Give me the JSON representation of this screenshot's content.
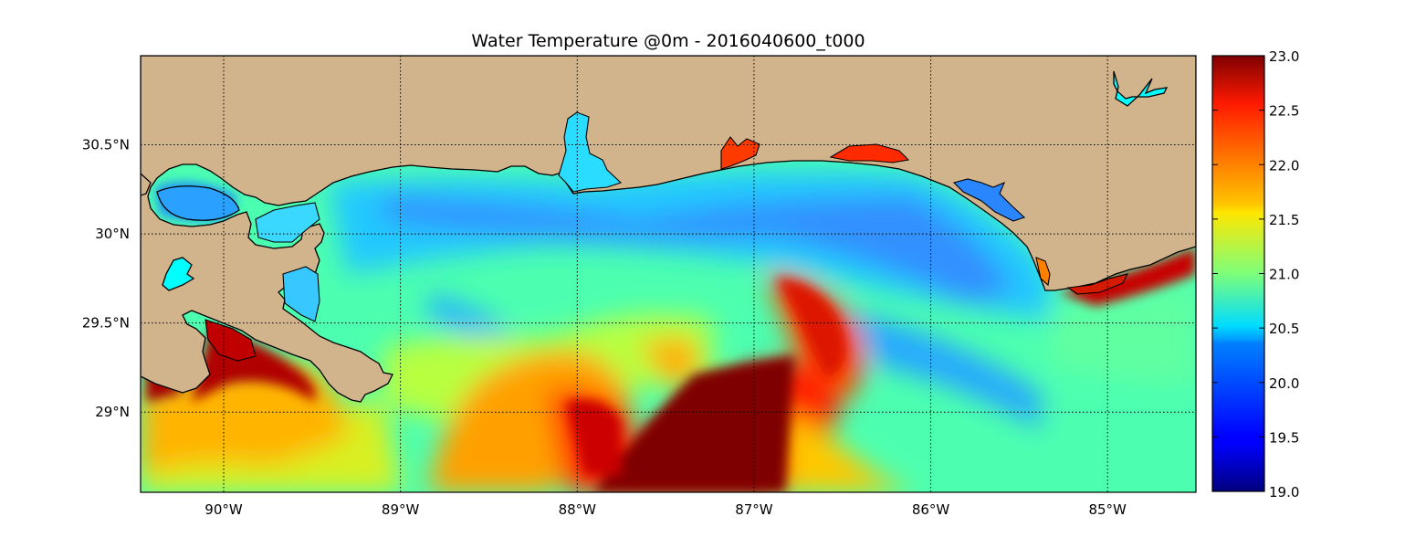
{
  "figure": {
    "title": "Water Temperature @0m - 2016040600_t000"
  },
  "map": {
    "lon_ticks": [
      "90°W",
      "89°W",
      "88°W",
      "87°W",
      "86°W",
      "85°W"
    ],
    "lat_ticks": [
      "30.5°N",
      "30N",
      "29.5°N",
      "29°N"
    ],
    "lat_tick_text": [
      "30.5°N",
      "30°N",
      "29.5°N",
      "29°N"
    ],
    "lon_range": [
      -90.47,
      -84.5
    ],
    "lat_range": [
      28.55,
      31.0
    ],
    "land_color": "#d2b48c",
    "lake_color": "#00ffff",
    "gridlines": "dotted",
    "colormap": "jet"
  },
  "colorbar": {
    "min": 19.0,
    "max": 23.0,
    "ticks": [
      "23.0",
      "22.5",
      "22.0",
      "21.5",
      "21.0",
      "20.5",
      "20.0",
      "19.5",
      "19.0"
    ]
  },
  "chart_data": {
    "type": "heatmap",
    "title": "Water Temperature @0m - 2016040600_t000",
    "variable": "Water Temperature",
    "units_range": [
      19.0,
      23.0
    ],
    "xlabel": "",
    "ylabel": "",
    "x_ticks": [
      "90°W",
      "89°W",
      "88°W",
      "87°W",
      "86°W",
      "85°W"
    ],
    "y_ticks": [
      "30.5°N",
      "30°N",
      "29.5°N",
      "29°N"
    ],
    "features": [
      {
        "region": "nearshore shelf 30.0-30.4°N, 89.5-85.5°W",
        "value_approx": 20.3
      },
      {
        "region": "warm tongue centered ~87.3°W, 28.6-29.3°N",
        "value_approx": 23.0
      },
      {
        "region": "warm plume ~88.0°W, 29.0-29.3°N",
        "value_approx": 22.5
      },
      {
        "region": "Mississippi delta ~89.8°W, 29.2-29.5°N",
        "value_approx": 23.0
      },
      {
        "region": "Apalachicola coast ~84.7°W, 29.7°N",
        "value_approx": 22.8
      },
      {
        "region": "offshore southwest 89.5-88.5°W, 28.6-28.9°N",
        "value_approx": 21.3
      },
      {
        "region": "southeast open gulf 85.5-84.5°W, 28.6-29.2°N",
        "value_approx": 20.9
      }
    ]
  }
}
